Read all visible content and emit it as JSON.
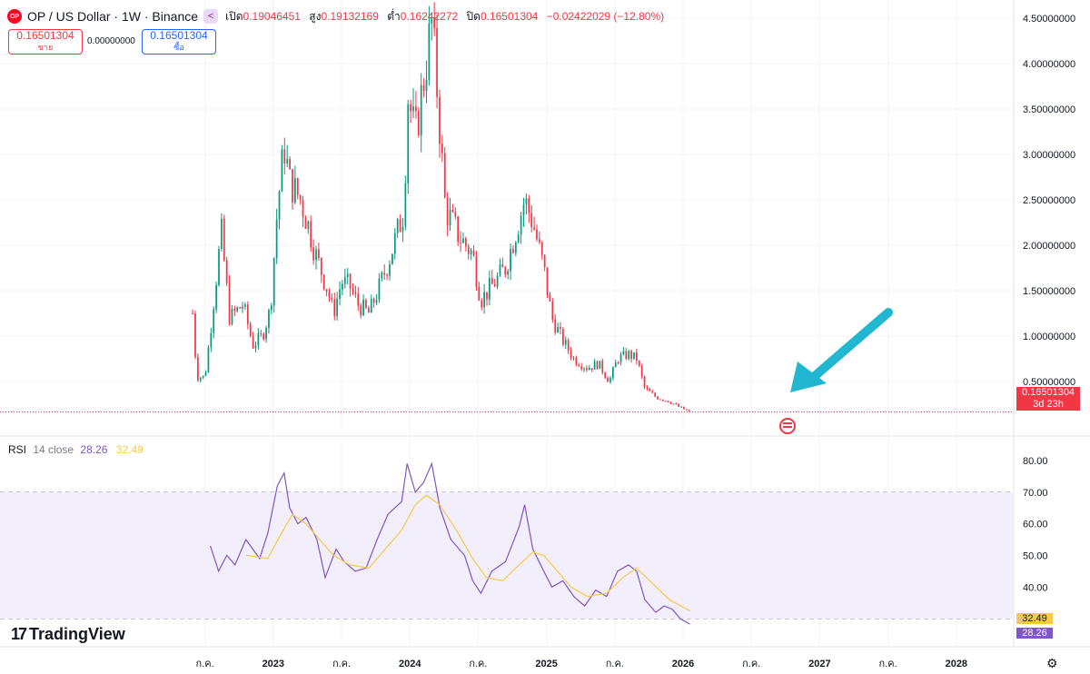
{
  "header": {
    "logo_text": "OP",
    "symbol": "OP / US Dollar · 1W · Binance",
    "open_label": "เปิด",
    "open": "0.19046451",
    "high_label": "สูง",
    "high": "0.19132169",
    "low_label": "ต่ำ",
    "low": "0.16242272",
    "close_label": "ปิด",
    "close": "0.16501304",
    "change": "−0.02422029 (−12.80%)"
  },
  "trade": {
    "sell_price": "0.16501304",
    "sell_label": "ขาย",
    "spread": "0.00000000",
    "buy_price": "0.16501304",
    "buy_label": "ซื้อ"
  },
  "rsi_legend": {
    "name": "RSI",
    "params": "14 close",
    "rsi": "28.26",
    "ma": "32.49"
  },
  "brand": "TradingView",
  "price_tag": {
    "value": "0.16501304",
    "countdown": "3d 23h"
  },
  "rsi_tags": {
    "ma": "32.49",
    "rsi": "28.26"
  },
  "colors": {
    "up": "#089981",
    "down": "#f23645",
    "rsi": "#7e57c2",
    "rsi_ma": "#f7c948",
    "rsi_band": "#f3eefc",
    "arrow": "#22b7d0"
  },
  "chart_data": [
    {
      "type": "candlestick",
      "title": "OP / US Dollar · 1W · Binance",
      "ylim": [
        0,
        4.7
      ],
      "y_ticks": [
        "4.50000000",
        "4.00000000",
        "3.50000000",
        "3.00000000",
        "2.50000000",
        "2.00000000",
        "1.50000000",
        "1.00000000",
        "0.50000000"
      ],
      "y_tick_values": [
        4.5,
        4.0,
        3.5,
        3.0,
        2.5,
        2.0,
        1.5,
        1.0,
        0.5
      ],
      "x_ticks": [
        "ก.ค.",
        "2023",
        "ก.ค.",
        "2024",
        "ก.ค.",
        "2025",
        "ก.ค.",
        "2026",
        "ก.ค.",
        "2027",
        "ก.ค.",
        "2028"
      ],
      "x_tick_times": [
        2022.5,
        2023.0,
        2023.5,
        2024.0,
        2024.5,
        2025.0,
        2025.5,
        2026.0,
        2026.5,
        2027.0,
        2027.5,
        2028.0
      ],
      "x_range": [
        2021.0,
        2028.42
      ],
      "last_price": 0.16501304,
      "anchors": [
        {
          "t": 2022.41,
          "p": 1.25
        },
        {
          "t": 2022.44,
          "p": 0.55
        },
        {
          "t": 2022.5,
          "p": 0.55
        },
        {
          "t": 2022.54,
          "p": 1.05
        },
        {
          "t": 2022.62,
          "p": 2.15
        },
        {
          "t": 2022.68,
          "p": 1.2
        },
        {
          "t": 2022.78,
          "p": 1.35
        },
        {
          "t": 2022.85,
          "p": 0.9
        },
        {
          "t": 2022.92,
          "p": 1.0
        },
        {
          "t": 2022.98,
          "p": 1.3
        },
        {
          "t": 2023.03,
          "p": 2.4
        },
        {
          "t": 2023.08,
          "p": 3.1
        },
        {
          "t": 2023.12,
          "p": 2.7
        },
        {
          "t": 2023.2,
          "p": 2.5
        },
        {
          "t": 2023.26,
          "p": 2.2
        },
        {
          "t": 2023.31,
          "p": 1.9
        },
        {
          "t": 2023.4,
          "p": 1.5
        },
        {
          "t": 2023.44,
          "p": 1.25
        },
        {
          "t": 2023.5,
          "p": 1.6
        },
        {
          "t": 2023.56,
          "p": 1.55
        },
        {
          "t": 2023.62,
          "p": 1.35
        },
        {
          "t": 2023.7,
          "p": 1.25
        },
        {
          "t": 2023.78,
          "p": 1.55
        },
        {
          "t": 2023.86,
          "p": 1.9
        },
        {
          "t": 2023.96,
          "p": 2.4
        },
        {
          "t": 2023.98,
          "p": 3.7
        },
        {
          "t": 2024.04,
          "p": 3.2
        },
        {
          "t": 2024.08,
          "p": 3.6
        },
        {
          "t": 2024.16,
          "p": 4.45
        },
        {
          "t": 2024.2,
          "p": 3.7
        },
        {
          "t": 2024.26,
          "p": 2.4
        },
        {
          "t": 2024.36,
          "p": 2.1
        },
        {
          "t": 2024.46,
          "p": 1.9
        },
        {
          "t": 2024.52,
          "p": 1.4
        },
        {
          "t": 2024.6,
          "p": 1.55
        },
        {
          "t": 2024.7,
          "p": 1.75
        },
        {
          "t": 2024.84,
          "p": 2.5
        },
        {
          "t": 2024.9,
          "p": 2.25
        },
        {
          "t": 2024.98,
          "p": 1.75
        },
        {
          "t": 2025.04,
          "p": 1.2
        },
        {
          "t": 2025.12,
          "p": 0.95
        },
        {
          "t": 2025.2,
          "p": 0.75
        },
        {
          "t": 2025.3,
          "p": 0.65
        },
        {
          "t": 2025.38,
          "p": 0.7
        },
        {
          "t": 2025.46,
          "p": 0.5
        },
        {
          "t": 2025.52,
          "p": 0.75
        },
        {
          "t": 2025.6,
          "p": 0.8
        },
        {
          "t": 2025.66,
          "p": 0.75
        },
        {
          "t": 2025.72,
          "p": 0.42
        },
        {
          "t": 2025.8,
          "p": 0.33
        },
        {
          "t": 2025.9,
          "p": 0.28
        },
        {
          "t": 2025.97,
          "p": 0.22
        },
        {
          "t": 2026.05,
          "p": 0.165
        }
      ]
    },
    {
      "type": "line",
      "title": "RSI 14 close",
      "ylim": [
        26,
        82
      ],
      "y_ticks": [
        "80.00",
        "70.00",
        "60.00",
        "50.00",
        "40.00"
      ],
      "y_tick_values": [
        80,
        70,
        60,
        50,
        40
      ],
      "band": [
        30,
        70
      ],
      "midline": 50,
      "series": [
        {
          "name": "RSI",
          "points": [
            {
              "t": 2022.54,
              "v": 53
            },
            {
              "t": 2022.6,
              "v": 45
            },
            {
              "t": 2022.66,
              "v": 50
            },
            {
              "t": 2022.72,
              "v": 47
            },
            {
              "t": 2022.8,
              "v": 55
            },
            {
              "t": 2022.9,
              "v": 49
            },
            {
              "t": 2022.96,
              "v": 57
            },
            {
              "t": 2023.03,
              "v": 72
            },
            {
              "t": 2023.08,
              "v": 76
            },
            {
              "t": 2023.12,
              "v": 65
            },
            {
              "t": 2023.18,
              "v": 60
            },
            {
              "t": 2023.24,
              "v": 62
            },
            {
              "t": 2023.32,
              "v": 55
            },
            {
              "t": 2023.38,
              "v": 43
            },
            {
              "t": 2023.46,
              "v": 52
            },
            {
              "t": 2023.52,
              "v": 48
            },
            {
              "t": 2023.6,
              "v": 45
            },
            {
              "t": 2023.68,
              "v": 46
            },
            {
              "t": 2023.76,
              "v": 55
            },
            {
              "t": 2023.84,
              "v": 63
            },
            {
              "t": 2023.94,
              "v": 67
            },
            {
              "t": 2023.98,
              "v": 79
            },
            {
              "t": 2024.04,
              "v": 70
            },
            {
              "t": 2024.1,
              "v": 73
            },
            {
              "t": 2024.16,
              "v": 79
            },
            {
              "t": 2024.22,
              "v": 65
            },
            {
              "t": 2024.3,
              "v": 55
            },
            {
              "t": 2024.4,
              "v": 50
            },
            {
              "t": 2024.46,
              "v": 42
            },
            {
              "t": 2024.52,
              "v": 38
            },
            {
              "t": 2024.6,
              "v": 45
            },
            {
              "t": 2024.7,
              "v": 48
            },
            {
              "t": 2024.8,
              "v": 59
            },
            {
              "t": 2024.84,
              "v": 66
            },
            {
              "t": 2024.9,
              "v": 52
            },
            {
              "t": 2024.98,
              "v": 45
            },
            {
              "t": 2025.04,
              "v": 40
            },
            {
              "t": 2025.12,
              "v": 42
            },
            {
              "t": 2025.2,
              "v": 37
            },
            {
              "t": 2025.28,
              "v": 34
            },
            {
              "t": 2025.36,
              "v": 39
            },
            {
              "t": 2025.44,
              "v": 37
            },
            {
              "t": 2025.52,
              "v": 45
            },
            {
              "t": 2025.6,
              "v": 47
            },
            {
              "t": 2025.66,
              "v": 45
            },
            {
              "t": 2025.72,
              "v": 36
            },
            {
              "t": 2025.8,
              "v": 32
            },
            {
              "t": 2025.86,
              "v": 34
            },
            {
              "t": 2025.92,
              "v": 33
            },
            {
              "t": 2025.98,
              "v": 30
            },
            {
              "t": 2026.05,
              "v": 28.26
            }
          ]
        },
        {
          "name": "MA",
          "points": [
            {
              "t": 2022.8,
              "v": 50
            },
            {
              "t": 2022.96,
              "v": 49
            },
            {
              "t": 2023.06,
              "v": 57
            },
            {
              "t": 2023.14,
              "v": 63
            },
            {
              "t": 2023.24,
              "v": 60
            },
            {
              "t": 2023.34,
              "v": 55
            },
            {
              "t": 2023.44,
              "v": 50
            },
            {
              "t": 2023.56,
              "v": 47
            },
            {
              "t": 2023.7,
              "v": 46
            },
            {
              "t": 2023.82,
              "v": 52
            },
            {
              "t": 2023.94,
              "v": 58
            },
            {
              "t": 2024.04,
              "v": 66
            },
            {
              "t": 2024.12,
              "v": 69
            },
            {
              "t": 2024.22,
              "v": 66
            },
            {
              "t": 2024.34,
              "v": 58
            },
            {
              "t": 2024.46,
              "v": 49
            },
            {
              "t": 2024.56,
              "v": 43
            },
            {
              "t": 2024.68,
              "v": 42
            },
            {
              "t": 2024.8,
              "v": 47
            },
            {
              "t": 2024.9,
              "v": 51
            },
            {
              "t": 2024.98,
              "v": 50
            },
            {
              "t": 2025.08,
              "v": 45
            },
            {
              "t": 2025.18,
              "v": 40
            },
            {
              "t": 2025.3,
              "v": 37
            },
            {
              "t": 2025.44,
              "v": 38
            },
            {
              "t": 2025.56,
              "v": 43
            },
            {
              "t": 2025.66,
              "v": 46
            },
            {
              "t": 2025.78,
              "v": 41
            },
            {
              "t": 2025.9,
              "v": 36
            },
            {
              "t": 2026.05,
              "v": 32.49
            }
          ]
        }
      ]
    }
  ]
}
